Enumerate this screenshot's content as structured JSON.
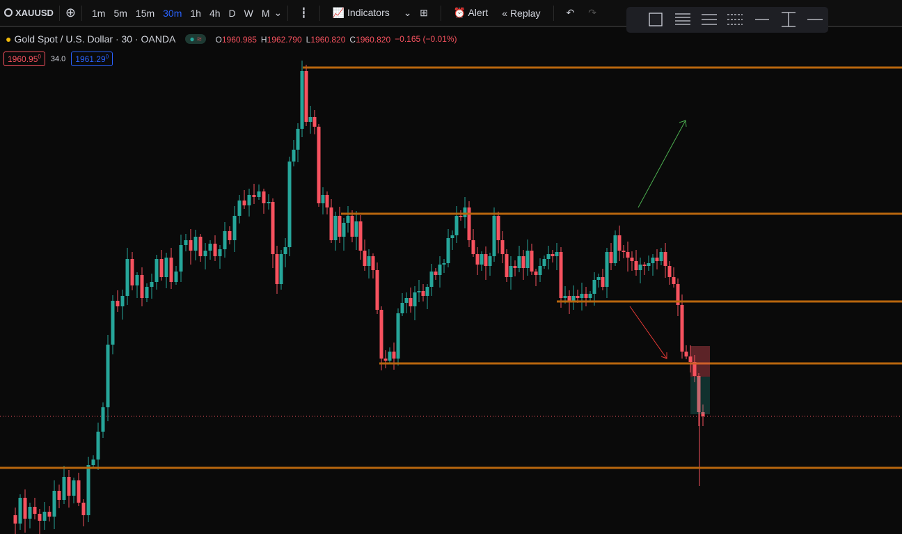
{
  "toolbar": {
    "symbol": "XAUUSD",
    "intervals": [
      "1m",
      "5m",
      "15m",
      "30m",
      "1h",
      "4h",
      "D",
      "W",
      "M"
    ],
    "active_interval": "30m",
    "indicators": "Indicators",
    "alert": "Alert",
    "replay": "Replay"
  },
  "legend": {
    "title": "Gold Spot / U.S. Dollar · 30 · OANDA",
    "ohlc": [
      {
        "key": "O",
        "value": "1960.985"
      },
      {
        "key": "H",
        "value": "1962.790"
      },
      {
        "key": "L",
        "value": "1960.820"
      },
      {
        "key": "C",
        "value": "1960.820"
      }
    ],
    "change": "−0.165 (−0.01%)",
    "bid": {
      "price": "1960.95",
      "sup": "0"
    },
    "spread": "34.0",
    "ask": {
      "price": "1961.29",
      "sup": "0"
    }
  }
}
